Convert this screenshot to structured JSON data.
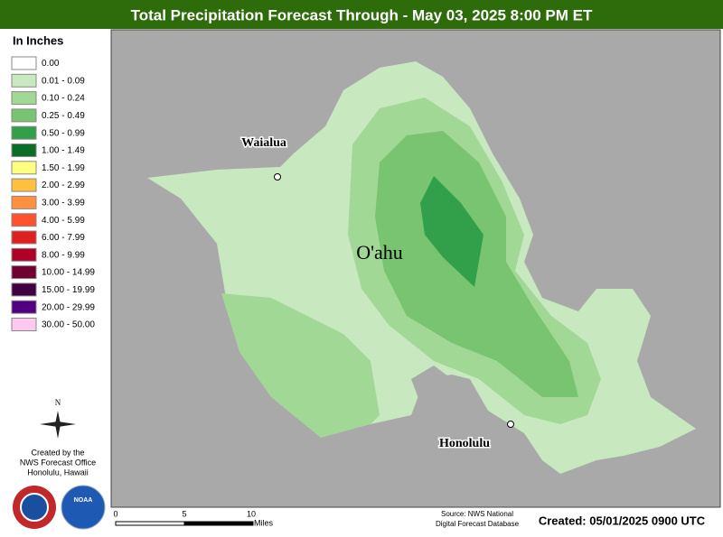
{
  "header": {
    "title": "Total Precipitation Forecast Through - May 03, 2025 8:00 PM ET"
  },
  "legend": {
    "title": "In Inches",
    "items": [
      {
        "label": "0.00",
        "color": "#ffffff"
      },
      {
        "label": "0.01 - 0.09",
        "color": "#c8e8c0"
      },
      {
        "label": "0.10 - 0.24",
        "color": "#a2d896"
      },
      {
        "label": "0.25 - 0.49",
        "color": "#78c470"
      },
      {
        "label": "0.50 - 0.99",
        "color": "#32a04a"
      },
      {
        "label": "1.00 - 1.49",
        "color": "#0a6e28"
      },
      {
        "label": "1.50 - 1.99",
        "color": "#ffff80"
      },
      {
        "label": "2.00 - 2.99",
        "color": "#ffc040"
      },
      {
        "label": "3.00 - 3.99",
        "color": "#ff9040"
      },
      {
        "label": "4.00 - 5.99",
        "color": "#ff5030"
      },
      {
        "label": "6.00 - 7.99",
        "color": "#e02020"
      },
      {
        "label": "8.00 - 9.99",
        "color": "#b00028"
      },
      {
        "label": "10.00 - 14.99",
        "color": "#700030"
      },
      {
        "label": "15.00 - 19.99",
        "color": "#400040"
      },
      {
        "label": "20.00 - 29.99",
        "color": "#500080"
      },
      {
        "label": "30.00 - 50.00",
        "color": "#ffc8f0"
      }
    ]
  },
  "map": {
    "island": "O'ahu",
    "places": [
      "Waialua",
      "Honolulu"
    ]
  },
  "credits": {
    "compass": "N",
    "lines": [
      "Created by the",
      "NWS Forecast Office",
      "Honolulu, Hawaii"
    ],
    "logo": "NOAA"
  },
  "scale": {
    "labels": [
      "0",
      "5",
      "10"
    ],
    "unit": "Miles"
  },
  "footer": {
    "source": [
      "Source: NWS National",
      "Digital Forecast Database"
    ],
    "created": "Created: 05/01/2025 0900 UTC"
  }
}
